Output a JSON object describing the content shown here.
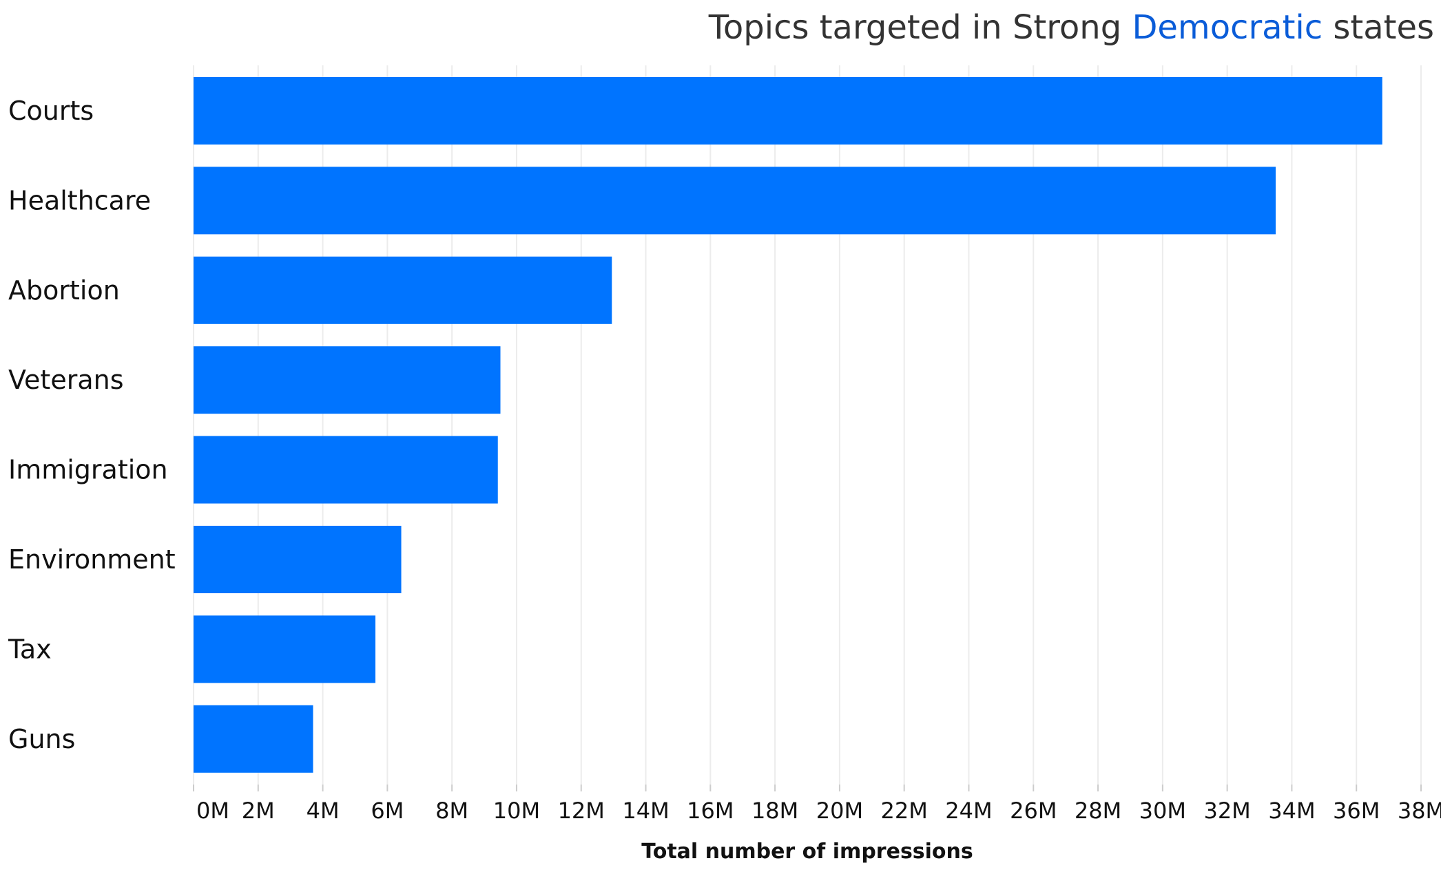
{
  "chart_data": {
    "type": "bar",
    "orientation": "horizontal",
    "title_parts": [
      {
        "text": "Topics targeted in Strong ",
        "highlight": false
      },
      {
        "text": "Democratic",
        "highlight": true
      },
      {
        "text": " states",
        "highlight": false
      }
    ],
    "title_highlight_color": "#0a5cd8",
    "bar_color": "#0074ff",
    "categories": [
      "Courts",
      "Healthcare",
      "Abortion",
      "Veterans",
      "Immigration",
      "Environment",
      "Tax",
      "Guns"
    ],
    "values": [
      36800000,
      33500000,
      12950000,
      9500000,
      9420000,
      6430000,
      5630000,
      3700000
    ],
    "xlabel": "Total number of impressions",
    "xlim": [
      0,
      38000000
    ],
    "x_ticks": [
      0,
      2000000,
      4000000,
      6000000,
      8000000,
      10000000,
      12000000,
      14000000,
      16000000,
      18000000,
      20000000,
      22000000,
      24000000,
      26000000,
      28000000,
      30000000,
      32000000,
      34000000,
      36000000,
      38000000
    ],
    "x_tick_labels": [
      "0M",
      "2M",
      "4M",
      "6M",
      "8M",
      "10M",
      "12M",
      "14M",
      "16M",
      "18M",
      "20M",
      "22M",
      "24M",
      "26M",
      "28M",
      "30M",
      "32M",
      "34M",
      "36M",
      "38M"
    ],
    "grid": true,
    "legend": "none"
  }
}
